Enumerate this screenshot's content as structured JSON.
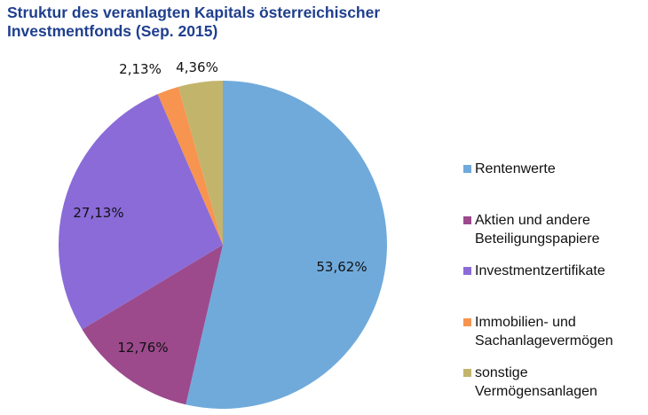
{
  "chart_data": {
    "type": "pie",
    "title": [
      "Struktur des veranlagten Kapitals österreichischer",
      "Investmentfonds (Sep. 2015)"
    ],
    "start_angle": "12 o'clock, clockwise",
    "legend_placement": "right",
    "slices": [
      {
        "name": "Rentenwerte",
        "value": 53.62,
        "label": "53,62%",
        "color": "#70AADB"
      },
      {
        "name": "Aktien und andere Beteiligungspapiere",
        "legend_lines": [
          "Aktien und andere",
          "Beteiligungspapiere"
        ],
        "value": 12.76,
        "label": "12,76%",
        "color": "#9C4A8C"
      },
      {
        "name": "Investmentzertifikate",
        "legend_lines": [
          "Investmentzertifikate"
        ],
        "value": 27.13,
        "label": "27,13%",
        "color": "#8A6BD8"
      },
      {
        "name": "Immobilien- und Sachanlagevermögen",
        "legend_lines": [
          "Immobilien- und",
          "Sachanlagevermögen"
        ],
        "value": 2.13,
        "label": "2,13%",
        "color": "#F79450"
      },
      {
        "name": "sonstige Vermögensanlagen",
        "legend_lines": [
          "sonstige",
          "Vermögensanlagen"
        ],
        "value": 4.36,
        "label": "4,36%",
        "color": "#C3B46C"
      }
    ]
  }
}
